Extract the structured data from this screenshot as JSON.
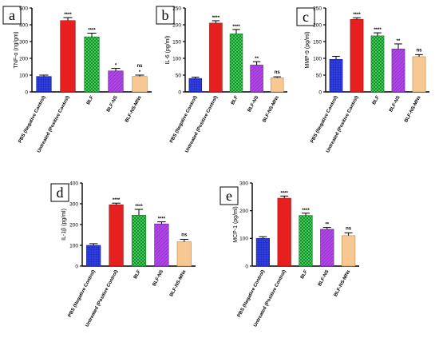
{
  "colors": {
    "bar_fills": [
      "#2f3fe6",
      "#e81f1f",
      "#34d04a",
      "#b046e6",
      "#f8c893"
    ],
    "bar_strokes": [
      "#1a238f",
      "#8f1010",
      "#1c7a2a",
      "#6a1f94",
      "#b88752"
    ],
    "bar_patterns": [
      "grid-blue",
      "solid",
      "check-green",
      "hatch-purple",
      "solid"
    ]
  },
  "chart_data": [
    {
      "type": "bar",
      "panel": "a",
      "ylabel": "TNF-α (ng/gm)",
      "ylim": [
        0,
        500
      ],
      "yticks": [
        "0",
        "100",
        "200",
        "300",
        "400",
        "500"
      ],
      "categories": [
        "PBS (Negative Control)",
        "Untreated (Positive Control)",
        "BLF",
        "BLF-NS",
        "BLF-NS-MNs"
      ],
      "values": [
        92,
        425,
        328,
        125,
        92
      ],
      "errors": [
        8,
        18,
        22,
        15,
        8
      ],
      "significance": [
        "",
        "****",
        "****",
        "*",
        "ns\n*"
      ]
    },
    {
      "type": "bar",
      "panel": "b",
      "ylabel": "IL-6 (pg/ml)",
      "ylim": [
        0,
        250
      ],
      "yticks": [
        "0",
        "50",
        "100",
        "150",
        "200",
        "250"
      ],
      "categories": [
        "PBS (Negative Control)",
        "Untreated (Positive Control)",
        "BLF",
        "BLF-NS",
        "BLF-NS-MNs"
      ],
      "values": [
        40,
        205,
        173,
        80,
        42
      ],
      "errors": [
        4,
        7,
        13,
        10,
        3
      ],
      "significance": [
        "",
        "****",
        "****",
        "**",
        "ns"
      ]
    },
    {
      "type": "bar",
      "panel": "c",
      "ylabel": "MMP-9 (pg/ml)",
      "ylim": [
        0,
        250
      ],
      "yticks": [
        "0",
        "50",
        "100",
        "150",
        "200",
        "250"
      ],
      "categories": [
        "PBS (Negative Control)",
        "Untreated (Positive Control)",
        "BLF",
        "BLF-NS",
        "BLF-NS-MNs"
      ],
      "values": [
        97,
        216,
        167,
        128,
        105
      ],
      "errors": [
        9,
        5,
        9,
        15,
        6
      ],
      "significance": [
        "",
        "****",
        "****",
        "**",
        "ns"
      ]
    },
    {
      "type": "bar",
      "panel": "d",
      "ylabel": "IL-1β (pg/ml)",
      "ylim": [
        0,
        400
      ],
      "yticks": [
        "0",
        "100",
        "200",
        "300",
        "400"
      ],
      "categories": [
        "PBS (Negative Control)",
        "Untreated (Positive Control)",
        "BLF",
        "BLF-NS",
        "BLF-NS-MNs"
      ],
      "values": [
        100,
        295,
        245,
        203,
        117
      ],
      "errors": [
        8,
        8,
        28,
        10,
        12
      ],
      "significance": [
        "",
        "****",
        "****",
        "****",
        "ns"
      ]
    },
    {
      "type": "bar",
      "panel": "e",
      "ylabel": "MCP-1 (pg/ml)",
      "ylim": [
        0,
        300
      ],
      "yticks": [
        "0",
        "100",
        "200",
        "300"
      ],
      "categories": [
        "PBS (Negative Control)",
        "Untreated (Positive Control)",
        "BLF",
        "BLF-NS",
        "BLF-NS-MNs"
      ],
      "values": [
        100,
        245,
        183,
        133,
        110
      ],
      "errors": [
        6,
        8,
        8,
        7,
        10
      ],
      "significance": [
        "",
        "****",
        "****",
        "**",
        "ns"
      ]
    }
  ]
}
